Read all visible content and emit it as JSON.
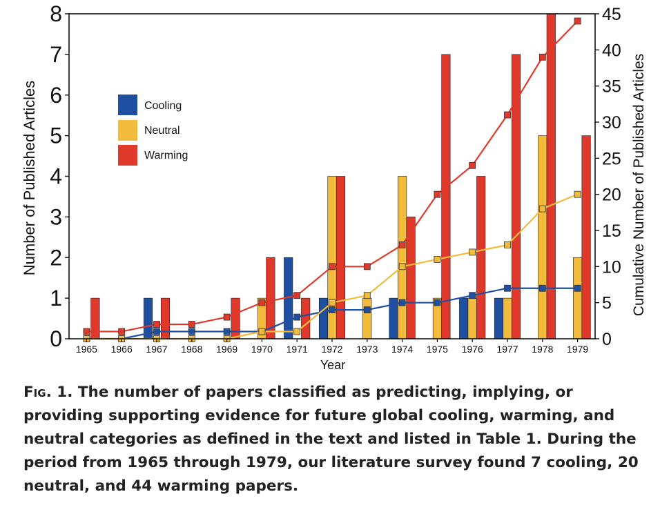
{
  "chart_data": {
    "type": "bar",
    "categories": [
      "1965",
      "1966",
      "1967",
      "1968",
      "1969",
      "1970",
      "1971",
      "1972",
      "1973",
      "1974",
      "1975",
      "1976",
      "1977",
      "1978",
      "1979"
    ],
    "xlabel": "Year",
    "ylabel": "Number of Published Articles",
    "y2label": "Cumulative Number of Published Articles",
    "ylim": [
      0,
      8
    ],
    "y2lim": [
      0,
      45
    ],
    "yticks": [
      "0",
      "1",
      "2",
      "3",
      "4",
      "5",
      "6",
      "7",
      "8"
    ],
    "y2ticks": [
      "0",
      "5",
      "10",
      "15",
      "20",
      "25",
      "30",
      "35",
      "40",
      "45"
    ],
    "legend_position": "upper-left",
    "series": [
      {
        "name": "Cooling",
        "type": "bar",
        "color": "#1f4fa0",
        "values": [
          0,
          0,
          1,
          0,
          0,
          0,
          2,
          1,
          0,
          1,
          0,
          1,
          1,
          0,
          0
        ]
      },
      {
        "name": "Neutral",
        "type": "bar",
        "color": "#f2bb3c",
        "values": [
          0,
          0,
          0,
          0,
          0,
          1,
          0,
          4,
          1,
          4,
          1,
          1,
          1,
          5,
          2
        ]
      },
      {
        "name": "Warming",
        "type": "bar",
        "color": "#e0392b",
        "values": [
          1,
          0,
          1,
          0,
          1,
          2,
          1,
          4,
          0,
          3,
          7,
          4,
          7,
          8,
          5
        ]
      },
      {
        "name": "Cooling (cumulative)",
        "type": "line",
        "axis": "right",
        "color": "#1f4fa0",
        "values": [
          0,
          0,
          1,
          1,
          1,
          1,
          3,
          4,
          4,
          5,
          5,
          6,
          7,
          7,
          7
        ]
      },
      {
        "name": "Neutral (cumulative)",
        "type": "line",
        "axis": "right",
        "color": "#f2bb3c",
        "values": [
          0,
          0,
          0,
          0,
          0,
          1,
          1,
          5,
          6,
          10,
          11,
          12,
          13,
          18,
          20
        ]
      },
      {
        "name": "Warming (cumulative)",
        "type": "line",
        "axis": "right",
        "color": "#e0392b",
        "values": [
          1,
          1,
          2,
          2,
          3,
          5,
          6,
          10,
          10,
          13,
          20,
          24,
          31,
          39,
          44
        ]
      }
    ]
  },
  "caption": {
    "fig_label": "Fig. 1.",
    "text": "The number of papers classified as predicting, implying, or providing supporting evidence for future global cooling, warming, and neutral categories as defined in the text and listed in Table 1. During the period from 1965 through 1979, our literature survey found 7 cooling, 20 neutral, and 44 warming papers."
  }
}
